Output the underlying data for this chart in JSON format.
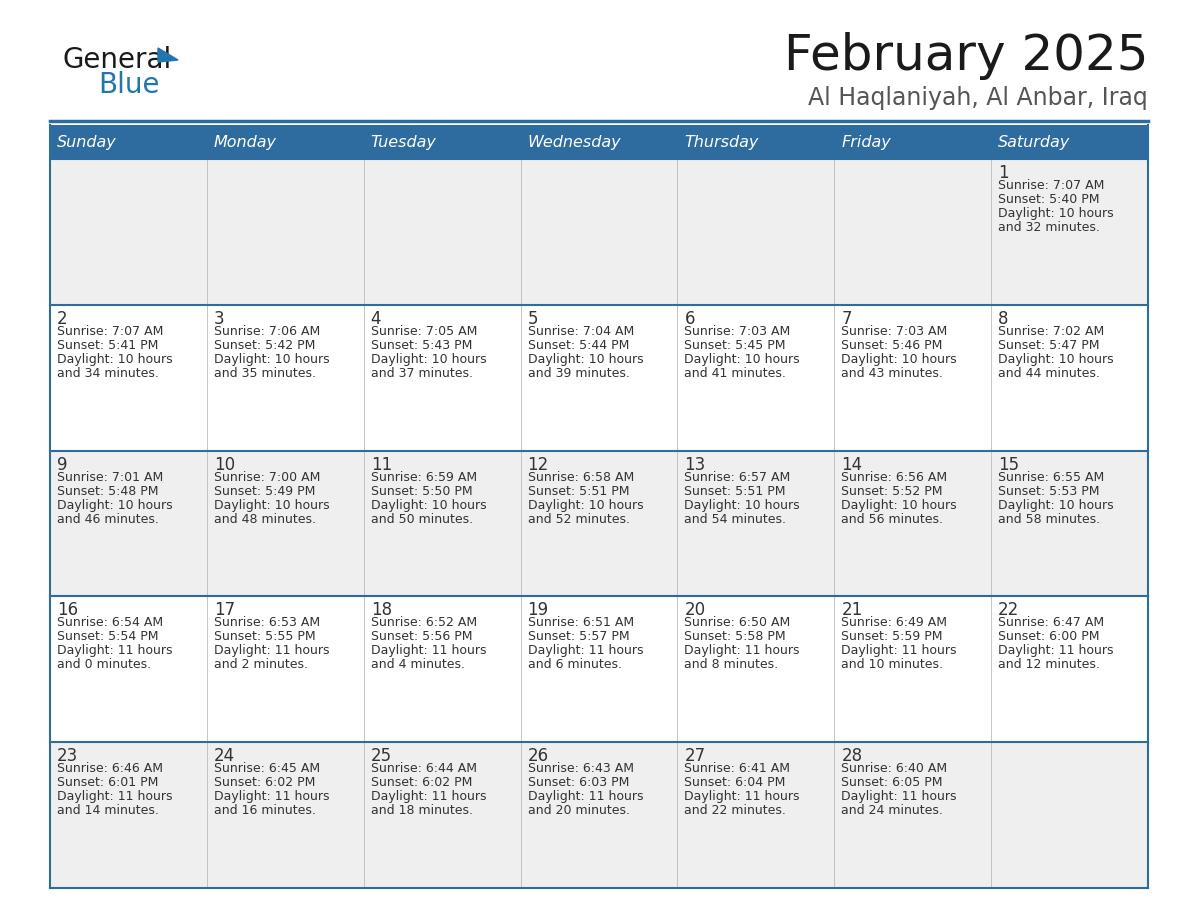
{
  "title": "February 2025",
  "subtitle": "Al Haqlaniyah, Al Anbar, Iraq",
  "days_of_week": [
    "Sunday",
    "Monday",
    "Tuesday",
    "Wednesday",
    "Thursday",
    "Friday",
    "Saturday"
  ],
  "header_bg": "#2E6B9E",
  "header_text_color": "#FFFFFF",
  "cell_bg_odd": "#EFEFEF",
  "cell_bg_even": "#FFFFFF",
  "border_color": "#2E6B9E",
  "sep_color": "#AAAAAA",
  "text_color": "#333333",
  "calendar_data": [
    [
      null,
      null,
      null,
      null,
      null,
      null,
      {
        "day": 1,
        "sunrise": "7:07 AM",
        "sunset": "5:40 PM",
        "daylight": "10 hours\nand 32 minutes."
      }
    ],
    [
      {
        "day": 2,
        "sunrise": "7:07 AM",
        "sunset": "5:41 PM",
        "daylight": "10 hours\nand 34 minutes."
      },
      {
        "day": 3,
        "sunrise": "7:06 AM",
        "sunset": "5:42 PM",
        "daylight": "10 hours\nand 35 minutes."
      },
      {
        "day": 4,
        "sunrise": "7:05 AM",
        "sunset": "5:43 PM",
        "daylight": "10 hours\nand 37 minutes."
      },
      {
        "day": 5,
        "sunrise": "7:04 AM",
        "sunset": "5:44 PM",
        "daylight": "10 hours\nand 39 minutes."
      },
      {
        "day": 6,
        "sunrise": "7:03 AM",
        "sunset": "5:45 PM",
        "daylight": "10 hours\nand 41 minutes."
      },
      {
        "day": 7,
        "sunrise": "7:03 AM",
        "sunset": "5:46 PM",
        "daylight": "10 hours\nand 43 minutes."
      },
      {
        "day": 8,
        "sunrise": "7:02 AM",
        "sunset": "5:47 PM",
        "daylight": "10 hours\nand 44 minutes."
      }
    ],
    [
      {
        "day": 9,
        "sunrise": "7:01 AM",
        "sunset": "5:48 PM",
        "daylight": "10 hours\nand 46 minutes."
      },
      {
        "day": 10,
        "sunrise": "7:00 AM",
        "sunset": "5:49 PM",
        "daylight": "10 hours\nand 48 minutes."
      },
      {
        "day": 11,
        "sunrise": "6:59 AM",
        "sunset": "5:50 PM",
        "daylight": "10 hours\nand 50 minutes."
      },
      {
        "day": 12,
        "sunrise": "6:58 AM",
        "sunset": "5:51 PM",
        "daylight": "10 hours\nand 52 minutes."
      },
      {
        "day": 13,
        "sunrise": "6:57 AM",
        "sunset": "5:51 PM",
        "daylight": "10 hours\nand 54 minutes."
      },
      {
        "day": 14,
        "sunrise": "6:56 AM",
        "sunset": "5:52 PM",
        "daylight": "10 hours\nand 56 minutes."
      },
      {
        "day": 15,
        "sunrise": "6:55 AM",
        "sunset": "5:53 PM",
        "daylight": "10 hours\nand 58 minutes."
      }
    ],
    [
      {
        "day": 16,
        "sunrise": "6:54 AM",
        "sunset": "5:54 PM",
        "daylight": "11 hours\nand 0 minutes."
      },
      {
        "day": 17,
        "sunrise": "6:53 AM",
        "sunset": "5:55 PM",
        "daylight": "11 hours\nand 2 minutes."
      },
      {
        "day": 18,
        "sunrise": "6:52 AM",
        "sunset": "5:56 PM",
        "daylight": "11 hours\nand 4 minutes."
      },
      {
        "day": 19,
        "sunrise": "6:51 AM",
        "sunset": "5:57 PM",
        "daylight": "11 hours\nand 6 minutes."
      },
      {
        "day": 20,
        "sunrise": "6:50 AM",
        "sunset": "5:58 PM",
        "daylight": "11 hours\nand 8 minutes."
      },
      {
        "day": 21,
        "sunrise": "6:49 AM",
        "sunset": "5:59 PM",
        "daylight": "11 hours\nand 10 minutes."
      },
      {
        "day": 22,
        "sunrise": "6:47 AM",
        "sunset": "6:00 PM",
        "daylight": "11 hours\nand 12 minutes."
      }
    ],
    [
      {
        "day": 23,
        "sunrise": "6:46 AM",
        "sunset": "6:01 PM",
        "daylight": "11 hours\nand 14 minutes."
      },
      {
        "day": 24,
        "sunrise": "6:45 AM",
        "sunset": "6:02 PM",
        "daylight": "11 hours\nand 16 minutes."
      },
      {
        "day": 25,
        "sunrise": "6:44 AM",
        "sunset": "6:02 PM",
        "daylight": "11 hours\nand 18 minutes."
      },
      {
        "day": 26,
        "sunrise": "6:43 AM",
        "sunset": "6:03 PM",
        "daylight": "11 hours\nand 20 minutes."
      },
      {
        "day": 27,
        "sunrise": "6:41 AM",
        "sunset": "6:04 PM",
        "daylight": "11 hours\nand 22 minutes."
      },
      {
        "day": 28,
        "sunrise": "6:40 AM",
        "sunset": "6:05 PM",
        "daylight": "11 hours\nand 24 minutes."
      },
      null
    ]
  ],
  "logo_color_general": "#1a1a1a",
  "logo_color_blue": "#2176AE"
}
